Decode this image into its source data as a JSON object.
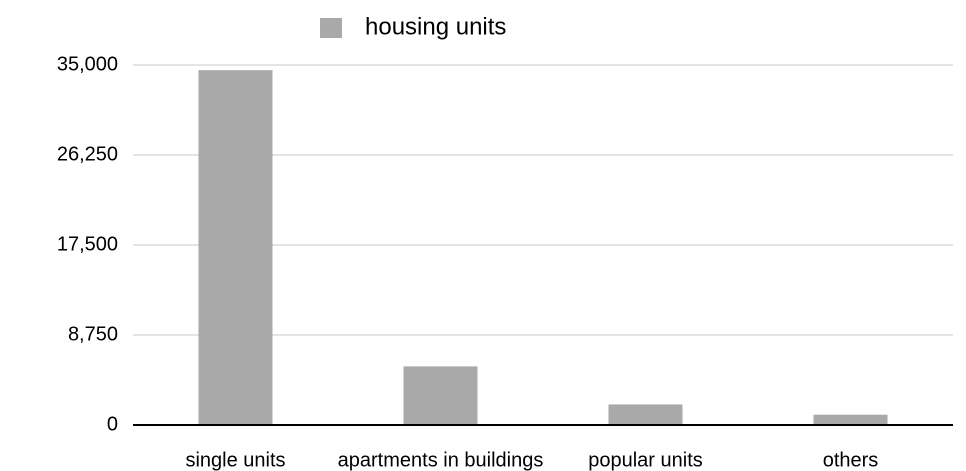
{
  "chart_data": {
    "type": "bar",
    "categories": [
      "single units",
      "apartments in buildings",
      "popular units",
      "others"
    ],
    "series": [
      {
        "name": "housing units",
        "color": "#a9a9a9",
        "values": [
          34500,
          5700,
          2000,
          1000
        ]
      }
    ],
    "ylim": [
      0,
      35000
    ],
    "yticks": [
      0,
      {
        "value": 8750,
        "label": "8,750"
      },
      {
        "value": 17500,
        "label": "17,500"
      },
      {
        "value": 26250,
        "label": "26,250"
      },
      {
        "value": 35000,
        "label": "35,000"
      }
    ],
    "grid": true,
    "legend": "top"
  }
}
